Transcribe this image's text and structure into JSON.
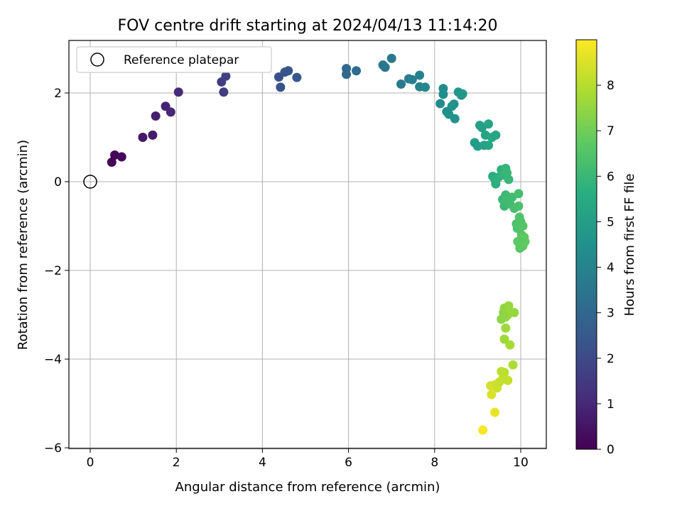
{
  "chart_data": {
    "type": "scatter",
    "title": "FOV centre drift starting at 2024/04/13 11:14:20",
    "xlabel": "Angular distance from reference (arcmin)",
    "ylabel": "Rotation from reference (arcmin)",
    "xlim": [
      -0.5,
      10.6
    ],
    "ylim": [
      -6.05,
      3.2
    ],
    "xticks": [
      0,
      2,
      4,
      6,
      8,
      10
    ],
    "yticks": [
      -6,
      -4,
      -2,
      0,
      2
    ],
    "grid": true,
    "legend": {
      "location": "upper-left",
      "entries": [
        {
          "label": "Reference platepar",
          "marker": "open-circle"
        }
      ]
    },
    "reference_point": {
      "x": 0,
      "y": 0
    },
    "colorbar": {
      "label": "Hours from first FF file",
      "colormap": "viridis",
      "range": [
        0,
        9
      ],
      "ticks": [
        0,
        1,
        2,
        3,
        4,
        5,
        6,
        7,
        8
      ]
    },
    "points": [
      {
        "x": 0.5,
        "y": 0.44,
        "t": 0.1
      },
      {
        "x": 0.57,
        "y": 0.6,
        "t": 0.1
      },
      {
        "x": 0.73,
        "y": 0.56,
        "t": 0.2
      },
      {
        "x": 1.22,
        "y": 1.0,
        "t": 0.6
      },
      {
        "x": 1.45,
        "y": 1.05,
        "t": 0.7
      },
      {
        "x": 1.52,
        "y": 1.48,
        "t": 0.8
      },
      {
        "x": 1.75,
        "y": 1.7,
        "t": 0.9
      },
      {
        "x": 1.87,
        "y": 1.57,
        "t": 1.0
      },
      {
        "x": 2.05,
        "y": 2.02,
        "t": 1.1
      },
      {
        "x": 3.05,
        "y": 2.25,
        "t": 1.6
      },
      {
        "x": 3.1,
        "y": 2.02,
        "t": 1.6
      },
      {
        "x": 3.15,
        "y": 2.38,
        "t": 1.7
      },
      {
        "x": 4.38,
        "y": 2.36,
        "t": 2.3
      },
      {
        "x": 4.42,
        "y": 2.13,
        "t": 2.3
      },
      {
        "x": 4.52,
        "y": 2.47,
        "t": 2.4
      },
      {
        "x": 4.6,
        "y": 2.5,
        "t": 2.4
      },
      {
        "x": 4.8,
        "y": 2.35,
        "t": 2.5
      },
      {
        "x": 5.95,
        "y": 2.55,
        "t": 3.1
      },
      {
        "x": 5.95,
        "y": 2.42,
        "t": 3.1
      },
      {
        "x": 6.18,
        "y": 2.5,
        "t": 3.2
      },
      {
        "x": 6.8,
        "y": 2.63,
        "t": 3.5
      },
      {
        "x": 6.85,
        "y": 2.58,
        "t": 3.5
      },
      {
        "x": 7.0,
        "y": 2.78,
        "t": 3.6
      },
      {
        "x": 7.22,
        "y": 2.2,
        "t": 3.7
      },
      {
        "x": 7.4,
        "y": 2.32,
        "t": 3.8
      },
      {
        "x": 7.48,
        "y": 2.3,
        "t": 3.9
      },
      {
        "x": 7.65,
        "y": 2.4,
        "t": 4.0
      },
      {
        "x": 7.65,
        "y": 2.14,
        "t": 4.0
      },
      {
        "x": 7.78,
        "y": 2.13,
        "t": 4.1
      },
      {
        "x": 8.13,
        "y": 1.76,
        "t": 4.3
      },
      {
        "x": 8.2,
        "y": 2.1,
        "t": 4.3
      },
      {
        "x": 8.2,
        "y": 1.97,
        "t": 4.4
      },
      {
        "x": 8.28,
        "y": 1.58,
        "t": 4.4
      },
      {
        "x": 8.33,
        "y": 1.52,
        "t": 4.5
      },
      {
        "x": 8.4,
        "y": 1.7,
        "t": 4.5
      },
      {
        "x": 8.45,
        "y": 1.75,
        "t": 4.6
      },
      {
        "x": 8.47,
        "y": 1.42,
        "t": 4.6
      },
      {
        "x": 8.55,
        "y": 2.02,
        "t": 4.7
      },
      {
        "x": 8.62,
        "y": 1.95,
        "t": 4.7
      },
      {
        "x": 8.65,
        "y": 1.98,
        "t": 4.8
      },
      {
        "x": 8.93,
        "y": 0.88,
        "t": 5.0
      },
      {
        "x": 9.0,
        "y": 0.8,
        "t": 5.0
      },
      {
        "x": 9.05,
        "y": 1.27,
        "t": 5.1
      },
      {
        "x": 9.1,
        "y": 1.22,
        "t": 5.1
      },
      {
        "x": 9.15,
        "y": 0.82,
        "t": 5.2
      },
      {
        "x": 9.18,
        "y": 1.05,
        "t": 5.2
      },
      {
        "x": 9.25,
        "y": 0.82,
        "t": 5.3
      },
      {
        "x": 9.25,
        "y": 1.3,
        "t": 5.3
      },
      {
        "x": 9.33,
        "y": 1.0,
        "t": 5.4
      },
      {
        "x": 9.42,
        "y": 1.05,
        "t": 5.4
      },
      {
        "x": 9.35,
        "y": 0.12,
        "t": 5.6
      },
      {
        "x": 9.4,
        "y": 0.05,
        "t": 5.7
      },
      {
        "x": 9.42,
        "y": -0.05,
        "t": 5.7
      },
      {
        "x": 9.48,
        "y": 0.1,
        "t": 5.8
      },
      {
        "x": 9.55,
        "y": 0.27,
        "t": 5.8
      },
      {
        "x": 9.6,
        "y": 0.15,
        "t": 5.9
      },
      {
        "x": 9.65,
        "y": 0.3,
        "t": 5.9
      },
      {
        "x": 9.68,
        "y": 0.2,
        "t": 6.0
      },
      {
        "x": 9.72,
        "y": 0.05,
        "t": 6.0
      },
      {
        "x": 9.58,
        "y": -0.4,
        "t": 6.1
      },
      {
        "x": 9.62,
        "y": -0.55,
        "t": 6.1
      },
      {
        "x": 9.65,
        "y": -0.3,
        "t": 6.1
      },
      {
        "x": 9.7,
        "y": -0.38,
        "t": 6.2
      },
      {
        "x": 9.75,
        "y": -0.5,
        "t": 6.2
      },
      {
        "x": 9.8,
        "y": -0.35,
        "t": 6.2
      },
      {
        "x": 9.85,
        "y": -0.6,
        "t": 6.3
      },
      {
        "x": 9.95,
        "y": -0.27,
        "t": 6.3
      },
      {
        "x": 9.95,
        "y": -0.55,
        "t": 6.4
      },
      {
        "x": 9.9,
        "y": -0.95,
        "t": 6.4
      },
      {
        "x": 9.92,
        "y": -1.05,
        "t": 6.5
      },
      {
        "x": 9.97,
        "y": -0.8,
        "t": 6.5
      },
      {
        "x": 10.0,
        "y": -0.9,
        "t": 6.5
      },
      {
        "x": 10.05,
        "y": -1.0,
        "t": 6.6
      },
      {
        "x": 10.02,
        "y": -1.2,
        "t": 6.6
      },
      {
        "x": 9.93,
        "y": -1.35,
        "t": 6.7
      },
      {
        "x": 9.98,
        "y": -1.5,
        "t": 6.7
      },
      {
        "x": 10.05,
        "y": -1.45,
        "t": 6.8
      },
      {
        "x": 10.1,
        "y": -1.35,
        "t": 6.8
      },
      {
        "x": 10.08,
        "y": -1.25,
        "t": 6.8
      },
      {
        "x": 9.55,
        "y": -3.1,
        "t": 7.4
      },
      {
        "x": 9.6,
        "y": -2.95,
        "t": 7.4
      },
      {
        "x": 9.62,
        "y": -2.85,
        "t": 7.5
      },
      {
        "x": 9.65,
        "y": -3.05,
        "t": 7.5
      },
      {
        "x": 9.7,
        "y": -3.0,
        "t": 7.5
      },
      {
        "x": 9.72,
        "y": -2.8,
        "t": 7.6
      },
      {
        "x": 9.75,
        "y": -2.95,
        "t": 7.6
      },
      {
        "x": 9.85,
        "y": -2.95,
        "t": 7.6
      },
      {
        "x": 9.65,
        "y": -3.3,
        "t": 7.7
      },
      {
        "x": 9.62,
        "y": -3.55,
        "t": 7.7
      },
      {
        "x": 9.75,
        "y": -3.68,
        "t": 7.8
      },
      {
        "x": 9.82,
        "y": -4.13,
        "t": 7.9
      },
      {
        "x": 9.55,
        "y": -4.28,
        "t": 8.1
      },
      {
        "x": 9.62,
        "y": -4.3,
        "t": 8.1
      },
      {
        "x": 9.58,
        "y": -4.45,
        "t": 8.2
      },
      {
        "x": 9.7,
        "y": -4.48,
        "t": 8.2
      },
      {
        "x": 9.5,
        "y": -4.52,
        "t": 8.2
      },
      {
        "x": 9.4,
        "y": -4.58,
        "t": 8.3
      },
      {
        "x": 9.45,
        "y": -4.65,
        "t": 8.3
      },
      {
        "x": 9.3,
        "y": -4.6,
        "t": 8.4
      },
      {
        "x": 9.32,
        "y": -4.8,
        "t": 8.5
      },
      {
        "x": 9.4,
        "y": -5.2,
        "t": 8.7
      },
      {
        "x": 9.12,
        "y": -5.6,
        "t": 8.9
      }
    ]
  }
}
